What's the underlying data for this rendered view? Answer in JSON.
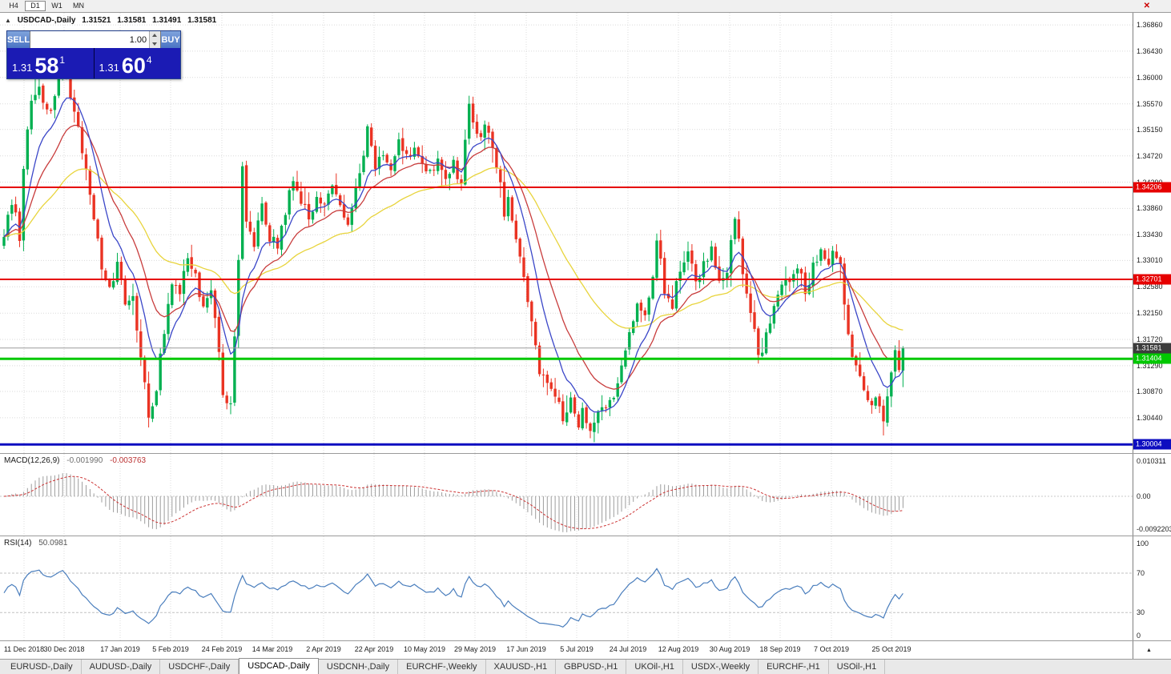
{
  "icons": {
    "close": "✕",
    "collapse": "▲",
    "scroll_up": "▲"
  },
  "toolbar": {
    "timeframes": [
      {
        "label": "H4",
        "active": false
      },
      {
        "label": "D1",
        "active": true
      },
      {
        "label": "W1",
        "active": false
      },
      {
        "label": "MN",
        "active": false
      }
    ]
  },
  "chart": {
    "header": {
      "symbol": "USDCAD-,Daily",
      "ohlc": [
        "1.31521",
        "1.31581",
        "1.31491",
        "1.31581"
      ]
    },
    "trade_panel": {
      "sell_label": "SELL",
      "buy_label": "BUY",
      "volume": "1.00",
      "sell_price": {
        "main": "1.31",
        "pips": "58",
        "frac": "1"
      },
      "buy_price": {
        "main": "1.31",
        "pips": "60",
        "frac": "4"
      }
    },
    "price_axis_ticks": [
      "1.36860",
      "1.36430",
      "1.36000",
      "1.35570",
      "1.35150",
      "1.34720",
      "1.34290",
      "1.33860",
      "1.33430",
      "1.33010",
      "1.32580",
      "1.32150",
      "1.31720",
      "1.31290",
      "1.30870",
      "1.30440"
    ],
    "levels": [
      {
        "label": "1.34206",
        "value": 1.34206,
        "color": "#e60000",
        "width": 2
      },
      {
        "label": "1.32701",
        "value": 1.32701,
        "color": "#e60000",
        "width": 2
      },
      {
        "label": "1.31404",
        "value": 1.31404,
        "color": "#00c800",
        "width": 3
      },
      {
        "label": "1.30004",
        "value": 1.30004,
        "color": "#0d0dc0",
        "width": 3
      }
    ],
    "current_price": {
      "label": "1.31581",
      "value": 1.31581
    }
  },
  "macd": {
    "title": "MACD(12,26,9)",
    "value_main": "-0.001990",
    "value_signal": "-0.003763",
    "axis_labels": [
      "0.010311",
      "0.00",
      "-0.0092203"
    ]
  },
  "rsi": {
    "title": "RSI(14)",
    "value": "50.0981",
    "axis_labels": [
      "100",
      "70",
      "30",
      "0"
    ],
    "levels": [
      70,
      30
    ]
  },
  "date_axis": [
    "11 Dec 2018",
    "30 Dec 2018",
    "17 Jan 2019",
    "5 Feb 2019",
    "24 Feb 2019",
    "14 Mar 2019",
    "2 Apr 2019",
    "22 Apr 2019",
    "10 May 2019",
    "29 May 2019",
    "17 Jun 2019",
    "5 Jul 2019",
    "24 Jul 2019",
    "12 Aug 2019",
    "30 Aug 2019",
    "18 Sep 2019",
    "7 Oct 2019",
    "25 Oct 2019"
  ],
  "tabs": [
    {
      "label": "EURUSD-,Daily",
      "active": false
    },
    {
      "label": "AUDUSD-,Daily",
      "active": false
    },
    {
      "label": "USDCHF-,Daily",
      "active": false
    },
    {
      "label": "USDCAD-,Daily",
      "active": true
    },
    {
      "label": "USDCNH-,Daily",
      "active": false
    },
    {
      "label": "EURCHF-,Weekly",
      "active": false
    },
    {
      "label": "XAUUSD-,H1",
      "active": false
    },
    {
      "label": "GBPUSD-,H1",
      "active": false
    },
    {
      "label": "UKOil-,H1",
      "active": false
    },
    {
      "label": "USDX-,Weekly",
      "active": false
    },
    {
      "label": "EURCHF-,H1",
      "active": false
    },
    {
      "label": "USOil-,H1",
      "active": false
    }
  ],
  "chart_data": {
    "type": "candlestick",
    "symbol": "USDCAD",
    "timeframe": "Daily",
    "last_close": 1.31581,
    "candle_count": 231,
    "price_view_range": [
      1.29863,
      1.37057
    ],
    "indicators": [
      {
        "name": "MACD",
        "params": [
          12,
          26,
          9
        ],
        "values": [
          -0.00199,
          -0.003763
        ]
      },
      {
        "name": "RSI",
        "params": [
          14
        ],
        "value": 50.0981
      }
    ],
    "moving_averages": [
      {
        "period": 9,
        "color": "#3a46c8"
      },
      {
        "period": 18,
        "color": "#c83c3c"
      },
      {
        "period": 45,
        "color": "#e8d43c"
      }
    ],
    "colors": {
      "up": "#00b050",
      "down": "#ea3323"
    },
    "waypoints": [
      [
        0,
        1.334
      ],
      [
        2,
        1.34
      ],
      [
        4,
        1.334
      ],
      [
        5,
        1.346
      ],
      [
        7,
        1.356
      ],
      [
        9,
        1.358
      ],
      [
        11,
        1.3545
      ],
      [
        13,
        1.356
      ],
      [
        15,
        1.362
      ],
      [
        17,
        1.356
      ],
      [
        19,
        1.351
      ],
      [
        21,
        1.345
      ],
      [
        23,
        1.337
      ],
      [
        25,
        1.329
      ],
      [
        27,
        1.3255
      ],
      [
        29,
        1.329
      ],
      [
        31,
        1.323
      ],
      [
        33,
        1.325
      ],
      [
        35,
        1.314
      ],
      [
        37,
        1.3048
      ],
      [
        39,
        1.309
      ],
      [
        41,
        1.319
      ],
      [
        43,
        1.3265
      ],
      [
        45,
        1.3245
      ],
      [
        47,
        1.331
      ],
      [
        49,
        1.3275
      ],
      [
        51,
        1.3225
      ],
      [
        53,
        1.3255
      ],
      [
        55,
        1.315
      ],
      [
        56,
        1.3085
      ],
      [
        58,
        1.307
      ],
      [
        59,
        1.318
      ],
      [
        60,
        1.33
      ],
      [
        61,
        1.3455
      ],
      [
        62,
        1.3365
      ],
      [
        64,
        1.333
      ],
      [
        66,
        1.339
      ],
      [
        68,
        1.334
      ],
      [
        70,
        1.333
      ],
      [
        72,
        1.3385
      ],
      [
        74,
        1.343
      ],
      [
        76,
        1.34
      ],
      [
        78,
        1.337
      ],
      [
        80,
        1.341
      ],
      [
        82,
        1.3385
      ],
      [
        84,
        1.342
      ],
      [
        86,
        1.339
      ],
      [
        88,
        1.3365
      ],
      [
        90,
        1.3415
      ],
      [
        92,
        1.3465
      ],
      [
        93,
        1.3515
      ],
      [
        95,
        1.3445
      ],
      [
        97,
        1.348
      ],
      [
        99,
        1.3455
      ],
      [
        101,
        1.349
      ],
      [
        103,
        1.347
      ],
      [
        105,
        1.349
      ],
      [
        107,
        1.346
      ],
      [
        109,
        1.3445
      ],
      [
        111,
        1.347
      ],
      [
        113,
        1.344
      ],
      [
        115,
        1.346
      ],
      [
        117,
        1.3425
      ],
      [
        118,
        1.35
      ],
      [
        119,
        1.3555
      ],
      [
        121,
        1.35
      ],
      [
        123,
        1.352
      ],
      [
        125,
        1.348
      ],
      [
        127,
        1.342
      ],
      [
        128,
        1.3365
      ],
      [
        129,
        1.34
      ],
      [
        131,
        1.333
      ],
      [
        133,
        1.328
      ],
      [
        135,
        1.3195
      ],
      [
        137,
        1.3125
      ],
      [
        139,
        1.3095
      ],
      [
        141,
        1.308
      ],
      [
        143,
        1.3045
      ],
      [
        145,
        1.3075
      ],
      [
        147,
        1.303
      ],
      [
        148,
        1.306
      ],
      [
        150,
        1.3015
      ],
      [
        152,
        1.3045
      ],
      [
        154,
        1.307
      ],
      [
        156,
        1.3085
      ],
      [
        158,
        1.313
      ],
      [
        160,
        1.318
      ],
      [
        162,
        1.3235
      ],
      [
        164,
        1.3215
      ],
      [
        166,
        1.327
      ],
      [
        167,
        1.3335
      ],
      [
        169,
        1.3255
      ],
      [
        171,
        1.323
      ],
      [
        173,
        1.329
      ],
      [
        175,
        1.3325
      ],
      [
        177,
        1.327
      ],
      [
        179,
        1.329
      ],
      [
        181,
        1.3315
      ],
      [
        183,
        1.326
      ],
      [
        185,
        1.3285
      ],
      [
        187,
        1.3375
      ],
      [
        189,
        1.3285
      ],
      [
        191,
        1.3225
      ],
      [
        193,
        1.314
      ],
      [
        195,
        1.318
      ],
      [
        197,
        1.3235
      ],
      [
        199,
        1.327
      ],
      [
        201,
        1.3265
      ],
      [
        203,
        1.329
      ],
      [
        205,
        1.325
      ],
      [
        207,
        1.329
      ],
      [
        209,
        1.332
      ],
      [
        211,
        1.3295
      ],
      [
        212,
        1.331
      ],
      [
        214,
        1.3285
      ],
      [
        216,
        1.3175
      ],
      [
        218,
        1.312
      ],
      [
        220,
        1.309
      ],
      [
        222,
        1.306
      ],
      [
        223,
        1.3085
      ],
      [
        225,
        1.3043
      ],
      [
        226,
        1.3075
      ],
      [
        228,
        1.315
      ],
      [
        229,
        1.313
      ],
      [
        230,
        1.31581
      ]
    ]
  }
}
